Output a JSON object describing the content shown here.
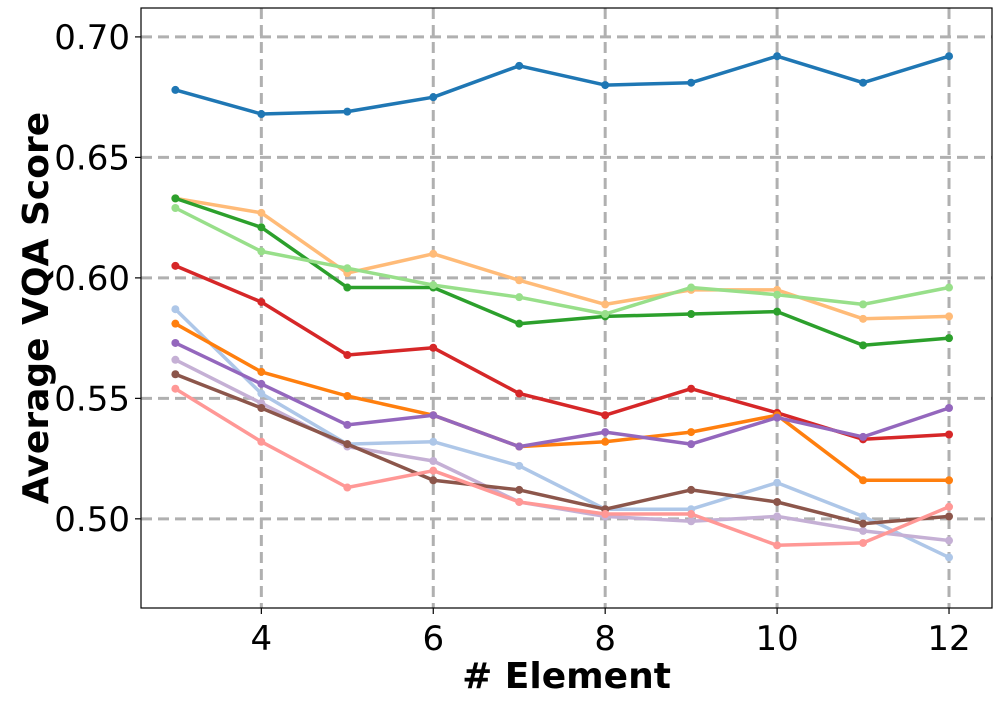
{
  "chart_data": {
    "type": "line",
    "title": "",
    "xlabel": "# Element",
    "ylabel": "Average VQA Score",
    "xlim": [
      2.6,
      12.5
    ],
    "ylim": [
      0.463,
      0.712
    ],
    "xticks": [
      4,
      6,
      8,
      10,
      12
    ],
    "yticks": [
      0.5,
      0.55,
      0.6,
      0.65,
      0.7
    ],
    "xtick_labels": [
      "4",
      "6",
      "8",
      "10",
      "12"
    ],
    "ytick_labels": [
      "0.50",
      "0.55",
      "0.60",
      "0.65",
      "0.70"
    ],
    "grid": true,
    "legend": "none",
    "x": [
      3,
      4,
      5,
      6,
      7,
      8,
      9,
      10,
      11,
      12
    ],
    "series": [
      {
        "color": "#1f77b4",
        "values": [
          0.678,
          0.668,
          0.669,
          0.675,
          0.688,
          0.68,
          0.681,
          0.692,
          0.681,
          0.692
        ]
      },
      {
        "color": "#ffbb78",
        "values": [
          0.633,
          0.627,
          0.602,
          0.61,
          0.599,
          0.589,
          0.595,
          0.595,
          0.583,
          0.584
        ]
      },
      {
        "color": "#2ca02c",
        "values": [
          0.633,
          0.621,
          0.596,
          0.596,
          0.581,
          0.584,
          0.585,
          0.586,
          0.572,
          0.575
        ]
      },
      {
        "color": "#98df8a",
        "values": [
          0.629,
          0.611,
          0.604,
          0.597,
          0.592,
          0.585,
          0.596,
          0.593,
          0.589,
          0.596
        ]
      },
      {
        "color": "#d62728",
        "values": [
          0.605,
          0.59,
          0.568,
          0.571,
          0.552,
          0.543,
          0.554,
          0.544,
          0.533,
          0.535
        ]
      },
      {
        "color": "#aec7e8",
        "values": [
          0.587,
          0.552,
          0.531,
          0.532,
          0.522,
          0.504,
          0.504,
          0.515,
          0.501,
          0.484
        ]
      },
      {
        "color": "#ff7f0e",
        "values": [
          0.581,
          0.561,
          0.551,
          0.543,
          0.53,
          0.532,
          0.536,
          0.543,
          0.516,
          0.516
        ]
      },
      {
        "color": "#9467bd",
        "values": [
          0.573,
          0.556,
          0.539,
          0.543,
          0.53,
          0.536,
          0.531,
          0.542,
          0.534,
          0.546
        ]
      },
      {
        "color": "#c5b0d5",
        "values": [
          0.566,
          0.548,
          0.53,
          0.524,
          0.507,
          0.501,
          0.499,
          0.501,
          0.495,
          0.491
        ]
      },
      {
        "color": "#8c564b",
        "values": [
          0.56,
          0.546,
          0.531,
          0.516,
          0.512,
          0.504,
          0.512,
          0.507,
          0.498,
          0.501
        ]
      },
      {
        "color": "#ff9896",
        "values": [
          0.554,
          0.532,
          0.513,
          0.52,
          0.507,
          0.502,
          0.502,
          0.489,
          0.49,
          0.505
        ]
      }
    ]
  }
}
